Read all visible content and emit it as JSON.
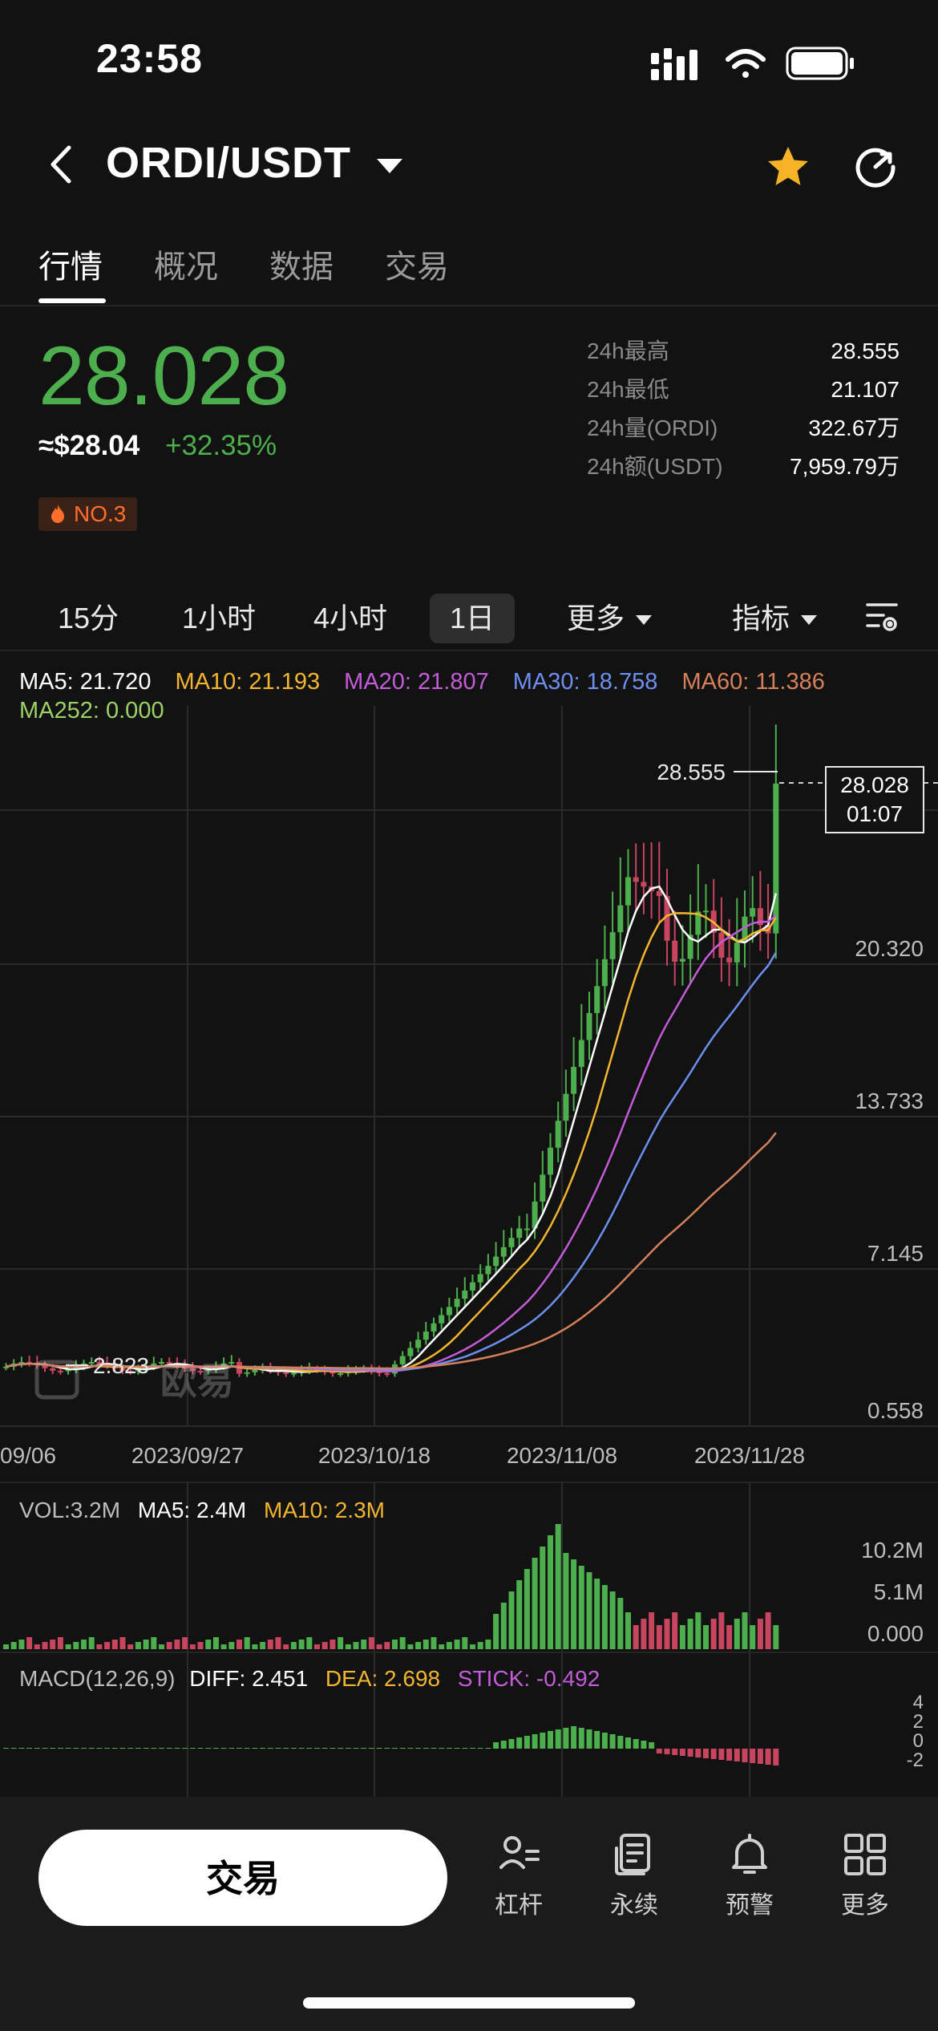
{
  "status_bar": {
    "time": "23:58"
  },
  "header": {
    "pair": "ORDI/USDT"
  },
  "tabs": [
    {
      "label": "行情",
      "active": true
    },
    {
      "label": "概况",
      "active": false
    },
    {
      "label": "数据",
      "active": false
    },
    {
      "label": "交易",
      "active": false
    }
  ],
  "price": {
    "last": "28.028",
    "usd": "≈$28.04",
    "change": "+32.35%",
    "rank": "NO.3"
  },
  "stats": [
    {
      "label": "24h最高",
      "value": "28.555"
    },
    {
      "label": "24h最低",
      "value": "21.107"
    },
    {
      "label": "24h量(ORDI)",
      "value": "322.67万"
    },
    {
      "label": "24h额(USDT)",
      "value": "7,959.79万"
    }
  ],
  "intervals": {
    "items": [
      "15分",
      "1小时",
      "4小时",
      "1日"
    ],
    "active": "1日",
    "more": "更多",
    "indicators": "指标"
  },
  "ma_legend": [
    {
      "text": "MA5: 21.720",
      "color": "#ffffff"
    },
    {
      "text": "MA10: 21.193",
      "color": "#f2b530"
    },
    {
      "text": "MA20: 21.807",
      "color": "#c45bd9"
    },
    {
      "text": "MA30: 18.758",
      "color": "#6d8ff0"
    },
    {
      "text": "MA60: 11.386",
      "color": "#d4805a"
    },
    {
      "text": "MA252: 0.000",
      "color": "#9bd166"
    }
  ],
  "chart_data": {
    "type": "candlestick",
    "y_ticks": [
      "20.320",
      "13.733",
      "7.145",
      "0.558"
    ],
    "y_range": [
      0.558,
      28.028
    ],
    "x_ticks": [
      "09/06",
      "2023/09/27",
      "2023/10/18",
      "2023/11/08",
      "2023/11/28"
    ],
    "high_label": "28.555",
    "low_label": "2.823",
    "last_price_tag": {
      "price": "28.028",
      "countdown": "01:07"
    },
    "watermark": "欧易",
    "up_color": "#4cae4c",
    "down_color": "#c8455f"
  },
  "volume": {
    "legend": [
      {
        "text": "VOL:3.2M",
        "color": "#bdbdbd"
      },
      {
        "text": "MA5: 2.4M",
        "color": "#ffffff"
      },
      {
        "text": "MA10: 2.3M",
        "color": "#f2b530"
      }
    ],
    "y_ticks": [
      "10.2M",
      "5.1M",
      "0.000"
    ]
  },
  "macd": {
    "legend": [
      {
        "text": "MACD(12,26,9)",
        "color": "#bdbdbd"
      },
      {
        "text": "DIFF: 2.451",
        "color": "#ffffff"
      },
      {
        "text": "DEA: 2.698",
        "color": "#f2b530"
      },
      {
        "text": "STICK: -0.492",
        "color": "#c45bd9"
      }
    ],
    "y_ticks": [
      "4",
      "2",
      "0",
      "-2"
    ]
  },
  "bottom_nav": {
    "trade": "交易",
    "items": [
      {
        "label": "杠杆",
        "icon": "leverage-icon"
      },
      {
        "label": "永续",
        "icon": "perpetual-icon"
      },
      {
        "label": "预警",
        "icon": "bell-icon"
      },
      {
        "label": "更多",
        "icon": "grid-icon"
      }
    ]
  }
}
